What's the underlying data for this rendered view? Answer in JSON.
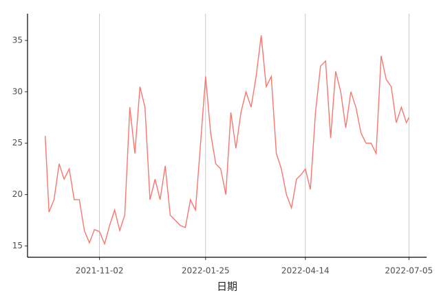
{
  "chart_data": {
    "type": "line",
    "x_label": "日期",
    "x": [
      "2021-09-20",
      "2021-09-23",
      "2021-09-27",
      "2021-10-01",
      "2021-10-05",
      "2021-10-09",
      "2021-10-13",
      "2021-10-17",
      "2021-10-21",
      "2021-10-25",
      "2021-10-29",
      "2021-11-02",
      "2021-11-06",
      "2021-11-10",
      "2021-11-14",
      "2021-11-18",
      "2021-11-22",
      "2021-11-26",
      "2021-11-30",
      "2021-12-04",
      "2021-12-08",
      "2021-12-12",
      "2021-12-16",
      "2021-12-20",
      "2021-12-24",
      "2021-12-28",
      "2022-01-01",
      "2022-01-05",
      "2022-01-09",
      "2022-01-13",
      "2022-01-17",
      "2022-01-21",
      "2022-01-25",
      "2022-01-29",
      "2022-02-02",
      "2022-02-06",
      "2022-02-10",
      "2022-02-14",
      "2022-02-18",
      "2022-02-22",
      "2022-02-26",
      "2022-03-02",
      "2022-03-06",
      "2022-03-10",
      "2022-03-14",
      "2022-03-18",
      "2022-03-22",
      "2022-03-26",
      "2022-03-30",
      "2022-04-03",
      "2022-04-07",
      "2022-04-11",
      "2022-04-14",
      "2022-04-18",
      "2022-04-22",
      "2022-04-26",
      "2022-04-30",
      "2022-05-04",
      "2022-05-08",
      "2022-05-12",
      "2022-05-16",
      "2022-05-20",
      "2022-05-24",
      "2022-05-28",
      "2022-06-01",
      "2022-06-05",
      "2022-06-09",
      "2022-06-13",
      "2022-06-17",
      "2022-06-21",
      "2022-06-25",
      "2022-06-29",
      "2022-07-03",
      "2022-07-05"
    ],
    "series": [
      {
        "color": "#f8766d",
        "values": [
          25.7,
          18.3,
          19.5,
          23,
          21.5,
          22.5,
          19.5,
          19.5,
          16.5,
          15.3,
          16.6,
          16.4,
          15.2,
          17,
          18.5,
          16.5,
          18,
          28.5,
          24,
          30.5,
          28.5,
          19.5,
          21.5,
          19.5,
          22.8,
          18,
          17.5,
          17,
          16.8,
          19.5,
          18.5,
          25,
          31.5,
          26,
          23,
          22.5,
          20,
          28,
          24.5,
          28,
          30,
          28.5,
          31.5,
          35.5,
          30.5,
          31.5,
          24,
          22.5,
          20,
          18.7,
          21.5,
          22,
          22.5,
          20.5,
          28,
          32.5,
          33,
          25.5,
          32,
          30,
          26.5,
          30,
          28.5,
          26,
          25,
          25,
          24,
          33.5,
          31.2,
          30.5,
          27,
          28.5,
          27,
          27.5
        ]
      }
    ],
    "xlim": [
      "2021-09-06",
      "2022-07-19"
    ],
    "xticks": [
      "2021-11-02",
      "2022-01-25",
      "2022-04-14",
      "2022-07-05"
    ],
    "ylim": [
      13.9,
      37.6
    ],
    "yticks": [
      15,
      20,
      25,
      30,
      35
    ],
    "grid": "x"
  }
}
